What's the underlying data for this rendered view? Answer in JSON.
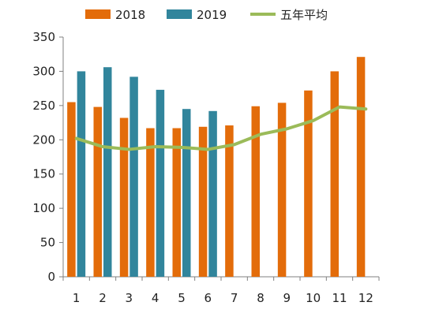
{
  "chart_data": {
    "type": "bar",
    "categories": [
      "1",
      "2",
      "3",
      "4",
      "5",
      "6",
      "7",
      "8",
      "9",
      "10",
      "11",
      "12"
    ],
    "series": [
      {
        "name": "2018",
        "type": "bar",
        "color": "#E36C0A",
        "values": [
          255,
          248,
          232,
          217,
          217,
          219,
          221,
          249,
          254,
          272,
          300,
          321
        ]
      },
      {
        "name": "2019",
        "type": "bar",
        "color": "#31859C",
        "values": [
          300,
          306,
          292,
          273,
          245,
          242,
          null,
          null,
          null,
          null,
          null,
          null
        ]
      },
      {
        "name": "五年平均",
        "type": "line",
        "color": "#9BBB59",
        "values": [
          202,
          190,
          186,
          190,
          189,
          186,
          193,
          208,
          216,
          228,
          248,
          245
        ]
      }
    ],
    "ylim": [
      0,
      350
    ],
    "yticks": [
      0,
      50,
      100,
      150,
      200,
      250,
      300,
      350
    ],
    "grid": false,
    "legend_position": "top"
  }
}
